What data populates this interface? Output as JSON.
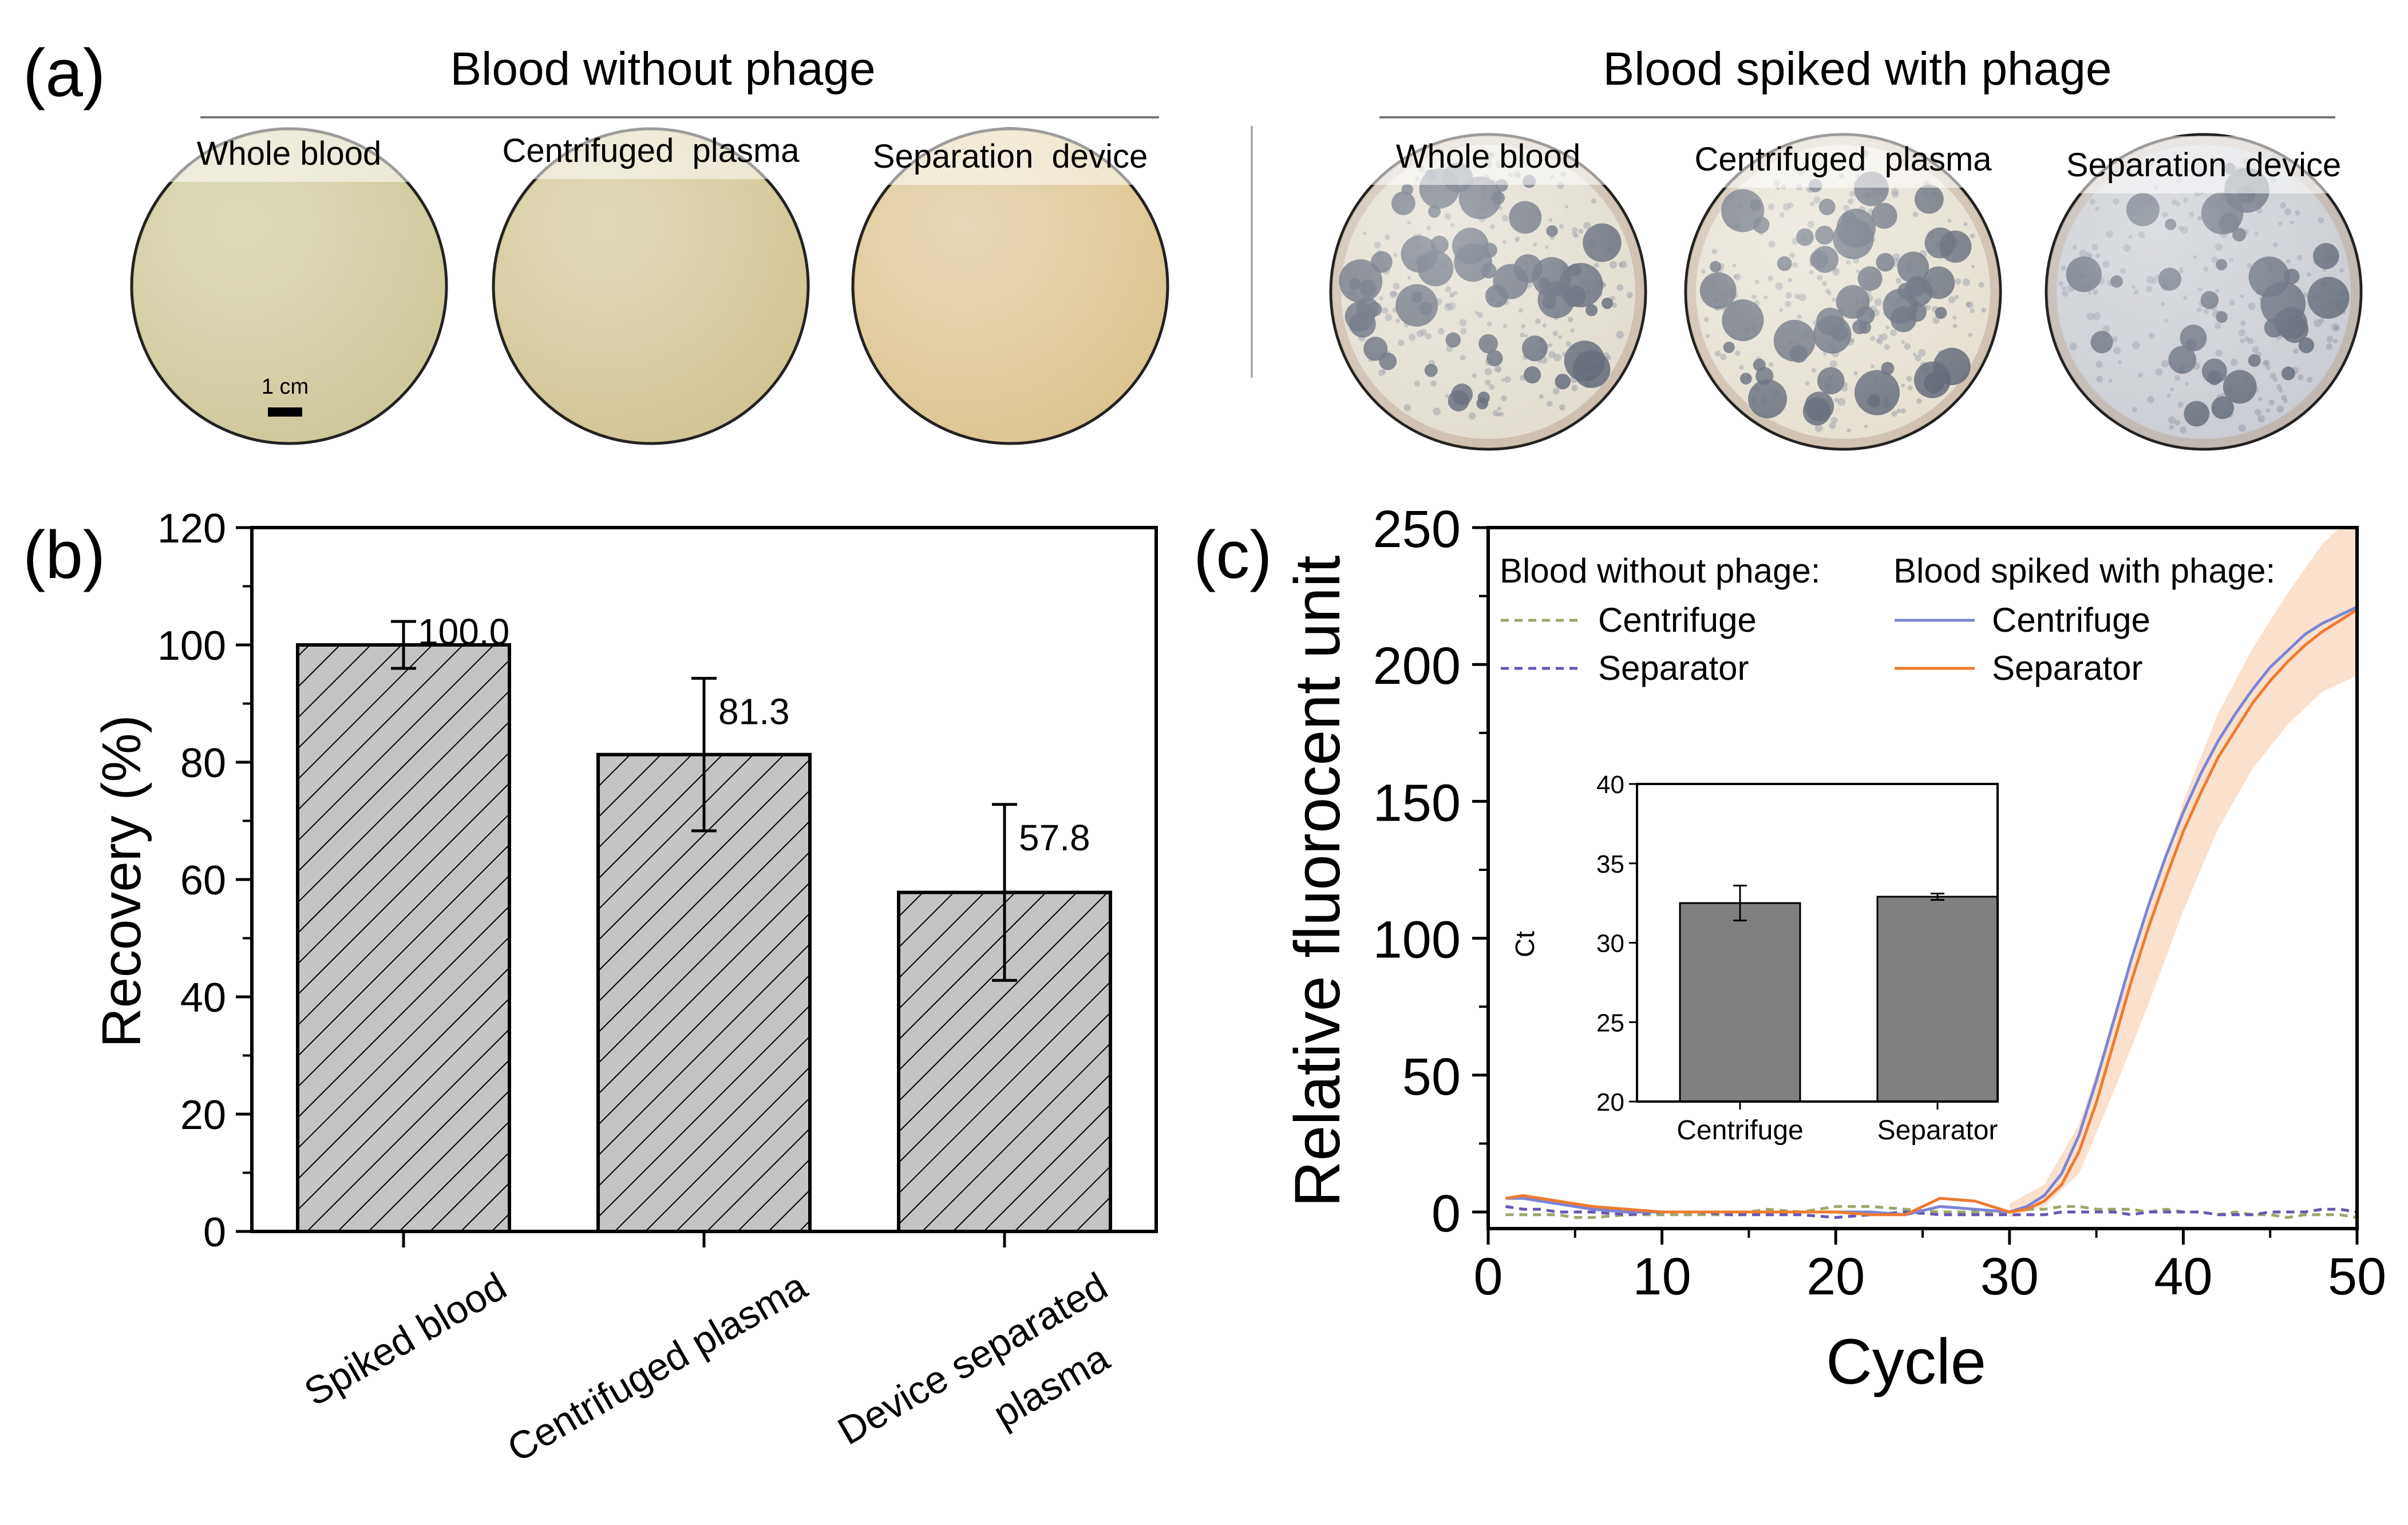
{
  "panel_a": {
    "label": "(a)",
    "group_without": {
      "title": "Blood without phage",
      "plates": [
        {
          "label": "Whole blood",
          "fill": "#cfc89a",
          "spots": 0
        },
        {
          "label": "Centrifuged  plasma",
          "fill": "#d2c594",
          "spots": 0
        },
        {
          "label": "Separation  device",
          "fill": "#dcc590",
          "spots": 0
        }
      ],
      "scale_bar": "1 cm"
    },
    "group_with": {
      "title": "Blood spiked with phage",
      "plates": [
        {
          "label": "Whole blood",
          "fill": "#e2ddd0",
          "spots": 60
        },
        {
          "label": "Centrifuged  plasma",
          "fill": "#e6e0d2",
          "spots": 55
        },
        {
          "label": "Separation  device",
          "fill": "#c9ccd2",
          "spots": 35
        }
      ]
    }
  },
  "colors": {
    "bar_hatch_fill": "#c4c4c4",
    "inset_bar": "#808080",
    "without_centrifuge": "#9aa86a",
    "without_separator": "#6a55b5",
    "with_centrifuge": "#7b84d6",
    "with_separator": "#ee7b30",
    "band": "#f4c9a6"
  },
  "chart_data": [
    {
      "panel": "(b)",
      "type": "bar",
      "categories": [
        "Spiked blood",
        "Centrifuged plasma",
        "Device separated plasma"
      ],
      "category_lines": [
        [
          "Spiked blood"
        ],
        [
          "Centrifuged plasma"
        ],
        [
          "Device separated",
          "plasma"
        ]
      ],
      "values": [
        100.0,
        81.3,
        57.8
      ],
      "errors": [
        4.0,
        13.0,
        15.0
      ],
      "data_labels": [
        "100.0",
        "81.3",
        "57.8"
      ],
      "ylabel": "Recovery (%)",
      "ylim": [
        0,
        120
      ],
      "yticks": [
        0,
        20,
        40,
        60,
        80,
        100,
        120
      ]
    },
    {
      "panel": "(c)",
      "type": "line",
      "xlabel": "Cycle",
      "ylabel": "Relative fluorocent unit",
      "xlim": [
        0,
        50
      ],
      "ylim": [
        0,
        250
      ],
      "xticks": [
        0,
        10,
        20,
        30,
        40,
        50
      ],
      "yticks": [
        0,
        50,
        100,
        150,
        200,
        250
      ],
      "legend": {
        "without_title": "Blood without phage:",
        "with_title": "Blood spiked with phage:",
        "entries": [
          "Centrifuge",
          "Separator",
          "Centrifuge",
          "Separator"
        ]
      },
      "x": [
        1,
        2,
        3,
        4,
        5,
        6,
        8,
        10,
        12,
        14,
        16,
        18,
        20,
        22,
        24,
        26,
        28,
        30,
        31,
        32,
        33,
        34,
        35,
        36,
        37,
        38,
        39,
        40,
        41,
        42,
        43,
        44,
        45,
        46,
        47,
        48,
        49,
        50
      ],
      "series": [
        {
          "name": "Blood without phage: Centrifuge",
          "dash": true,
          "values": [
            -1,
            -1,
            -1,
            -1,
            -2,
            -2,
            -1,
            -1,
            -1,
            -1,
            1,
            0,
            2,
            2,
            1,
            0,
            0,
            0,
            1,
            1,
            2,
            2,
            1,
            1,
            1,
            0,
            1,
            0,
            0,
            -1,
            0,
            -1,
            -1,
            -2,
            -1,
            -1,
            -1,
            -2
          ]
        },
        {
          "name": "Blood without phage: Separator",
          "dash": true,
          "values": [
            2,
            1,
            1,
            0,
            0,
            0,
            -1,
            0,
            0,
            -1,
            -1,
            -1,
            -2,
            -1,
            0,
            -1,
            -1,
            -1,
            -1,
            -1,
            0,
            0,
            0,
            0,
            -1,
            0,
            0,
            0,
            0,
            -1,
            -1,
            -1,
            0,
            0,
            0,
            1,
            1,
            0
          ]
        },
        {
          "name": "Blood spiked with phage: Centrifuge",
          "dash": false,
          "values": [
            5,
            5,
            4,
            3,
            2,
            1,
            0,
            0,
            0,
            0,
            0,
            0,
            0,
            0,
            -1,
            2,
            1,
            0,
            2,
            6,
            14,
            28,
            48,
            70,
            92,
            112,
            130,
            146,
            160,
            172,
            182,
            191,
            199,
            205,
            211,
            215,
            218,
            221
          ]
        },
        {
          "name": "Blood spiked with phage: Separator",
          "dash": false,
          "values": [
            5,
            6,
            5,
            4,
            3,
            2,
            1,
            0,
            0,
            0,
            0,
            0,
            0,
            -1,
            -1,
            5,
            4,
            0,
            1,
            4,
            10,
            22,
            40,
            62,
            84,
            104,
            122,
            139,
            153,
            166,
            176,
            186,
            194,
            201,
            207,
            212,
            216,
            220
          ]
        }
      ],
      "band": {
        "x": [
          30,
          32,
          34,
          36,
          38,
          40,
          42,
          44,
          46,
          48,
          50
        ],
        "upper": [
          3,
          10,
          32,
          70,
          110,
          150,
          182,
          206,
          226,
          244,
          256
        ],
        "lower": [
          -2,
          2,
          14,
          44,
          76,
          110,
          140,
          162,
          178,
          190,
          196
        ]
      }
    },
    {
      "panel": "(c) inset",
      "type": "bar",
      "categories": [
        "Centrifuge",
        "Separator"
      ],
      "values": [
        32.5,
        32.9
      ],
      "errors": [
        1.1,
        0.2
      ],
      "ylabel": "Ct",
      "ylim": [
        20,
        40
      ],
      "yticks": [
        20,
        25,
        30,
        35,
        40
      ]
    }
  ]
}
